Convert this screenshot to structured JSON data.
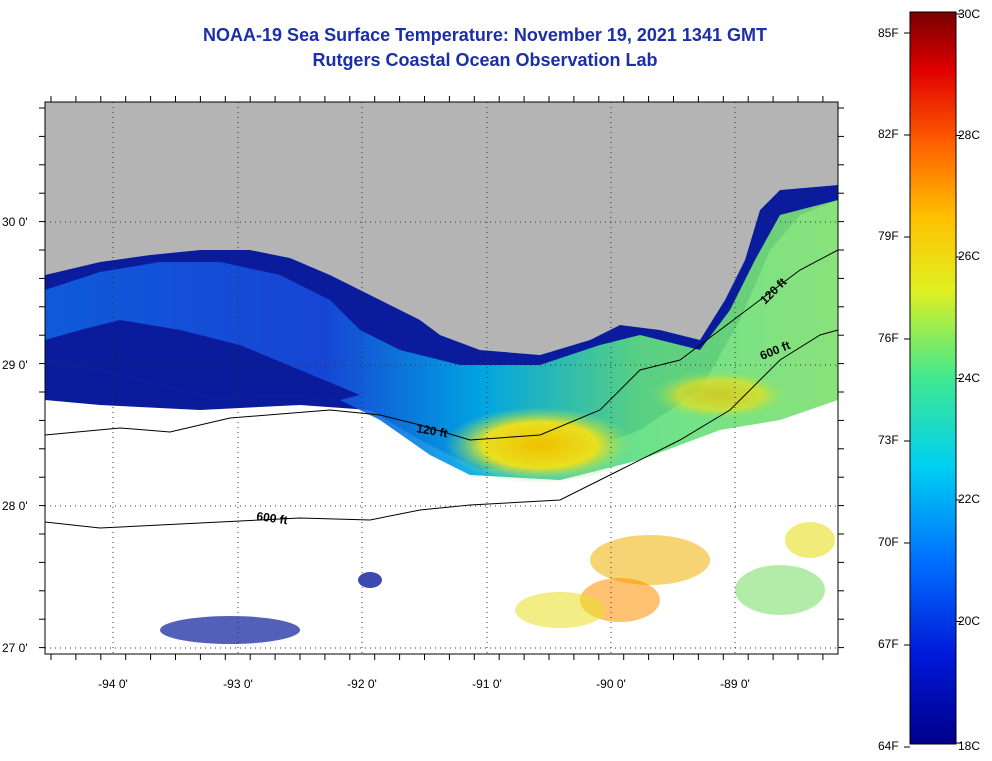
{
  "title": "NOAA-19 Sea Surface Temperature:  November 19, 2021 1341 GMT",
  "subtitle": "Rutgers Coastal Ocean Observation Lab",
  "map": {
    "lat_labels": [
      "30 0'",
      "29 0'",
      "28 0'",
      "27 0'"
    ],
    "lon_labels": [
      "-94 0'",
      "-93 0'",
      "-92 0'",
      "-91 0'",
      "-90 0'",
      "-89 0'"
    ],
    "contours": [
      {
        "label": "120 ft"
      },
      {
        "label": "600 ft"
      },
      {
        "label": "120 ft"
      },
      {
        "label": "600 ft"
      }
    ],
    "colors": {
      "land": "#b4b4b4",
      "cloud": "#ffffff",
      "cold": "#0a1c9c",
      "mid": "#00c8e6",
      "warm": "#f5d000"
    }
  },
  "colorbar": {
    "fahrenheit": [
      "85F",
      "82F",
      "79F",
      "76F",
      "73F",
      "70F",
      "67F",
      "64F"
    ],
    "celsius": [
      "30C",
      "28C",
      "26C",
      "24C",
      "22C",
      "20C",
      "18C"
    ]
  }
}
